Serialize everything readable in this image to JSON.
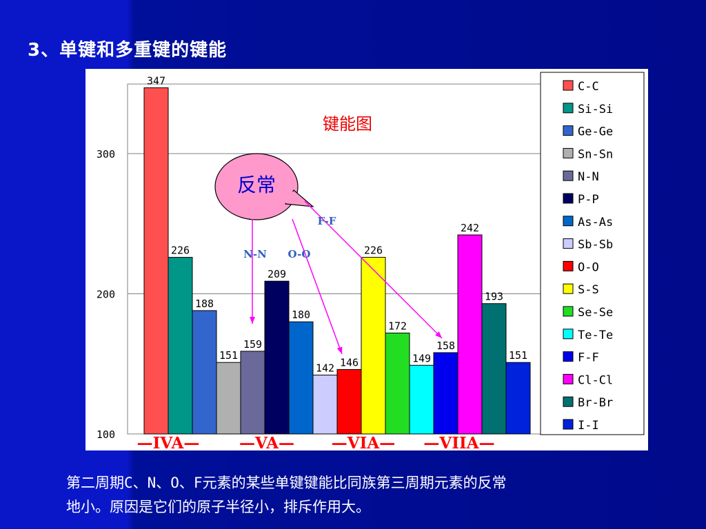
{
  "slide": {
    "title": "3、单键和多重键的键能",
    "footnote_line1": "第二周期C、N、O、F元素的某些单键键能比同族第三周期元素的反常",
    "footnote_line2": "地小。原因是它们的原子半径小，排斥作用大。"
  },
  "chart_data": {
    "type": "bar",
    "title": "键能图",
    "xlabel": "",
    "ylabel": "",
    "ylim": [
      100,
      350
    ],
    "yticks": [
      100,
      200,
      300
    ],
    "grid": true,
    "legend_position": "right",
    "categories": [
      "C-C",
      "Si-Si",
      "Ge-Ge",
      "Sn-Sn",
      "N-N",
      "P-P",
      "As-As",
      "Sb-Sb",
      "O-O",
      "S-S",
      "Se-Se",
      "Te-Te",
      "F-F",
      "Cl-Cl",
      "Br-Br",
      "I-I"
    ],
    "values": [
      347,
      226,
      188,
      151,
      159,
      209,
      180,
      142,
      146,
      226,
      172,
      149,
      158,
      242,
      193,
      151
    ],
    "colors": [
      "#ff5050",
      "#009688",
      "#3366cc",
      "#b0b0b0",
      "#6a6a9a",
      "#000060",
      "#0066cc",
      "#ccccff",
      "#ff0000",
      "#ffff00",
      "#22dd22",
      "#00ffff",
      "#0000ee",
      "#ff00ff",
      "#007070",
      "#0022dd"
    ],
    "groups": [
      {
        "label": "—IVA—",
        "members": [
          0,
          1,
          2,
          3
        ]
      },
      {
        "label": "—VA—",
        "members": [
          4,
          5,
          6,
          7
        ]
      },
      {
        "label": "—VIA—",
        "members": [
          8,
          9,
          10,
          11
        ]
      },
      {
        "label": "—VIIA—",
        "members": [
          12,
          13,
          14,
          15
        ]
      }
    ],
    "callout_text": "反常",
    "annotations": [
      {
        "text": "N-N",
        "target": 4
      },
      {
        "text": "O-O",
        "target": 8
      },
      {
        "text": "F-F",
        "target": 12
      }
    ]
  }
}
